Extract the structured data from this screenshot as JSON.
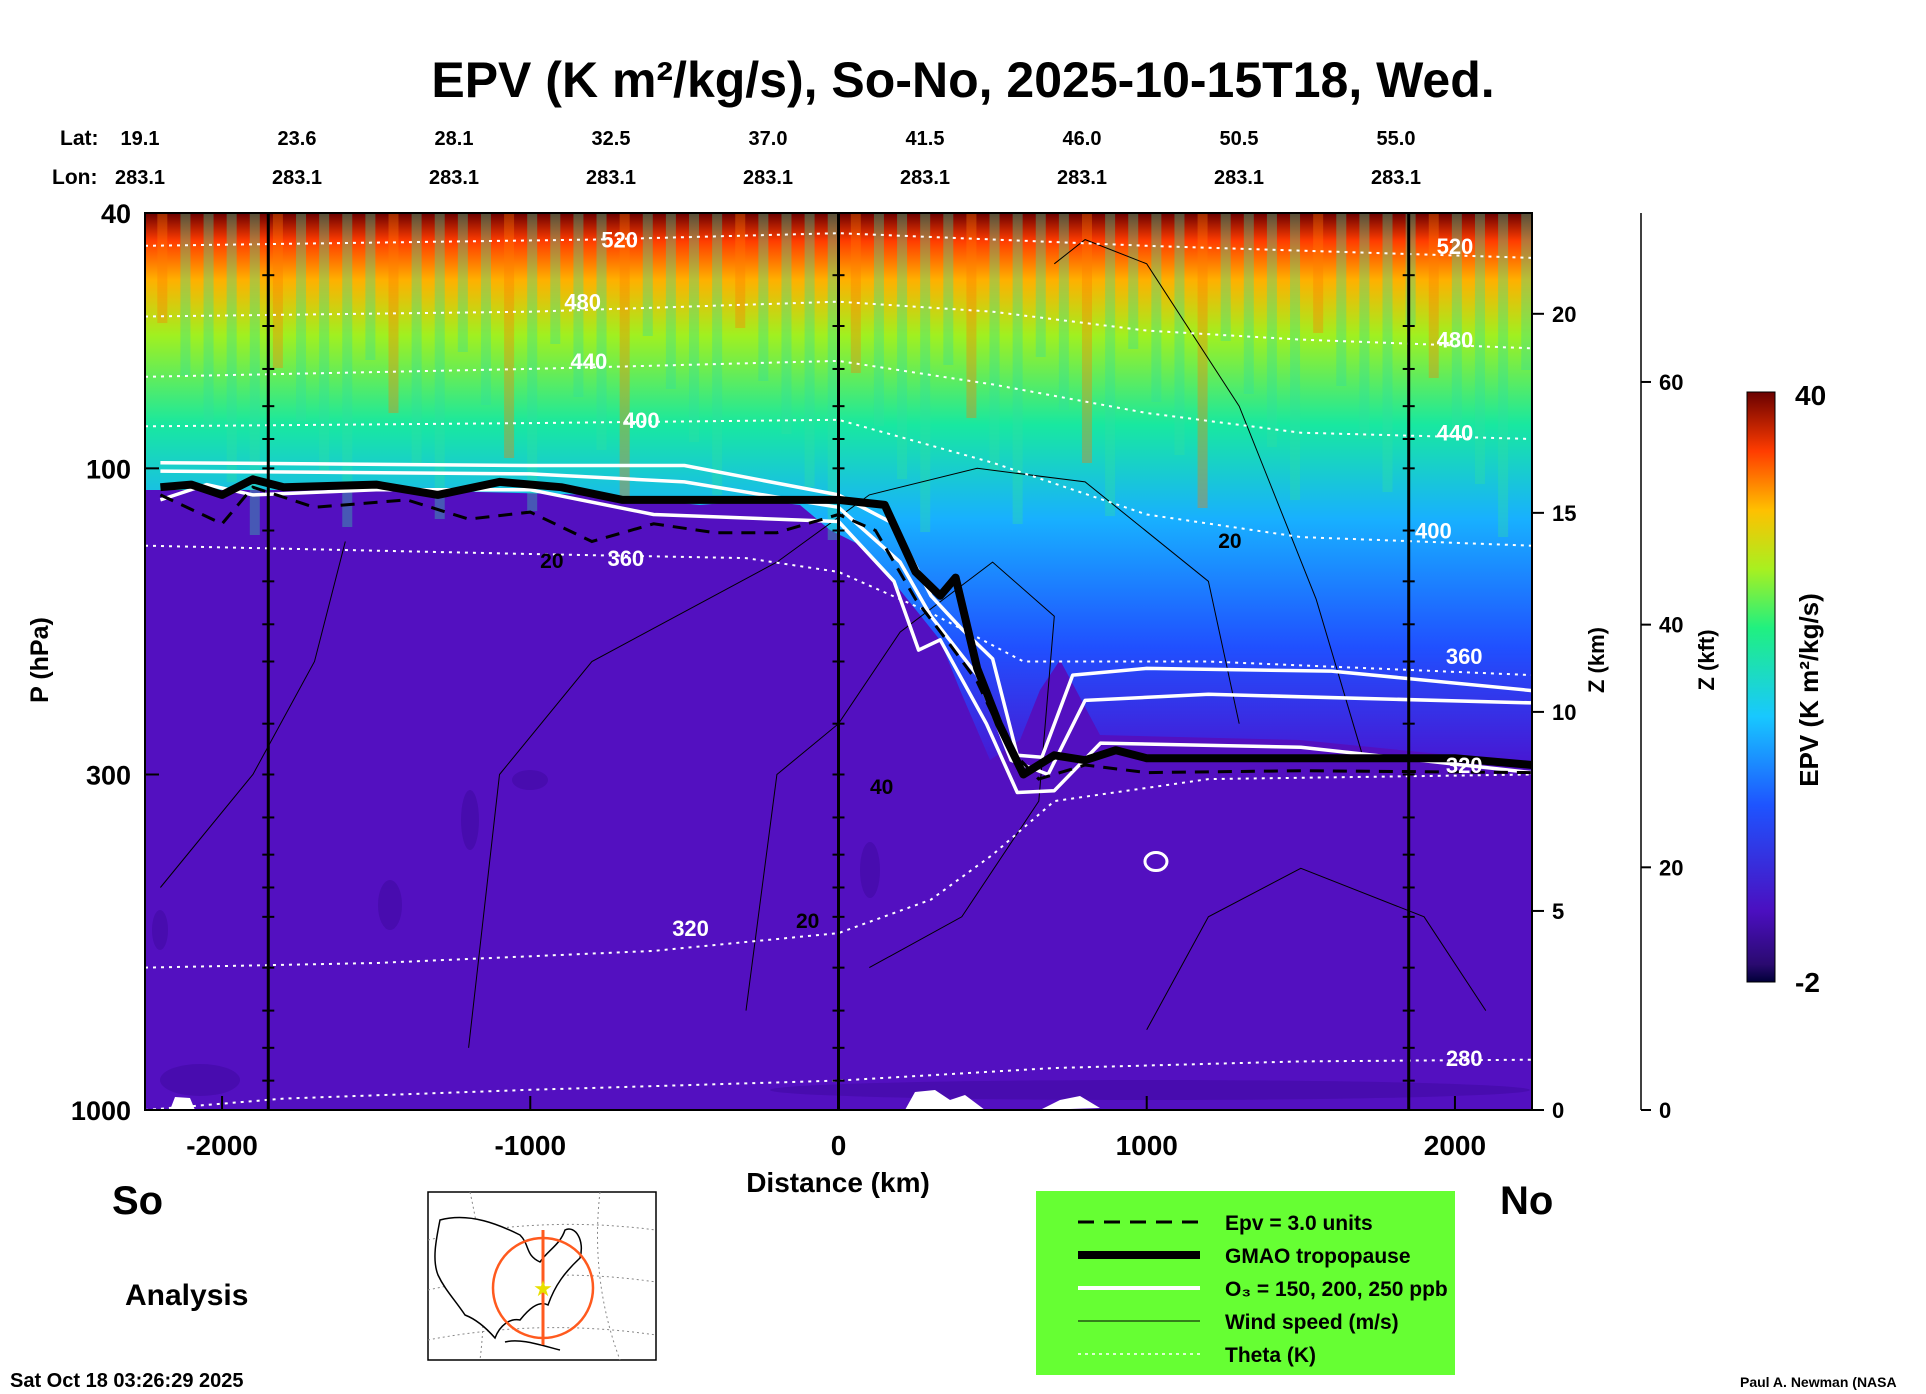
{
  "chart_data": {
    "type": "heatmap",
    "title": "EPV (K m²/kg/s), So-No, 2025-10-15T18, Wed.",
    "lat_label": "Lat:",
    "lon_label": "Lon:",
    "header_columns": [
      {
        "lat": "19.1",
        "lon": "283.1"
      },
      {
        "lat": "23.6",
        "lon": "283.1"
      },
      {
        "lat": "28.1",
        "lon": "283.1"
      },
      {
        "lat": "32.5",
        "lon": "283.1"
      },
      {
        "lat": "37.0",
        "lon": "283.1"
      },
      {
        "lat": "41.5",
        "lon": "283.1"
      },
      {
        "lat": "46.0",
        "lon": "283.1"
      },
      {
        "lat": "50.5",
        "lon": "283.1"
      },
      {
        "lat": "55.0",
        "lon": "283.1"
      }
    ],
    "xlabel": "Distance (km)",
    "xlim": [
      -2250,
      2250
    ],
    "xticks": [
      -2000,
      -1000,
      0,
      1000,
      2000
    ],
    "vertical_lines_km": [
      -1850,
      0,
      1850
    ],
    "ylabel": "P (hPa)",
    "y_log_scale": true,
    "ylim": [
      1000,
      40
    ],
    "yticks": [
      40,
      100,
      300,
      1000
    ],
    "z_km_label": "Z (km)",
    "z_km_ticks": [
      0,
      5,
      10,
      15,
      20
    ],
    "z_kft_label": "Z (kft)",
    "z_kft_ticks": [
      0,
      20,
      40,
      60
    ],
    "left_end_label": "So",
    "right_end_label": "No",
    "colorbar": {
      "label": "EPV (K m²/kg/s)",
      "min": -2,
      "max": 40
    },
    "theta_contours": [
      {
        "value": 280,
        "label": "280",
        "points": [
          [
            -2250,
            1000
          ],
          [
            -1800,
            960
          ],
          [
            -1000,
            930
          ],
          [
            0,
            900
          ],
          [
            700,
            860
          ],
          [
            1500,
            840
          ],
          [
            2250,
            835
          ]
        ]
      },
      {
        "value": 320,
        "label": "320",
        "points": [
          [
            -2250,
            600
          ],
          [
            -1500,
            590
          ],
          [
            -600,
            565
          ],
          [
            0,
            530
          ],
          [
            300,
            470
          ],
          [
            500,
            400
          ],
          [
            700,
            330
          ],
          [
            1200,
            305
          ],
          [
            2250,
            300
          ]
        ]
      },
      {
        "value": 360,
        "label": "360",
        "points": [
          [
            -2250,
            132
          ],
          [
            -1000,
            136
          ],
          [
            -300,
            138
          ],
          [
            0,
            145
          ],
          [
            300,
            168
          ],
          [
            600,
            200
          ],
          [
            1200,
            200
          ],
          [
            2250,
            210
          ]
        ]
      },
      {
        "value": 400,
        "label": "400",
        "points": [
          [
            -2250,
            86
          ],
          [
            -1000,
            85
          ],
          [
            0,
            84
          ],
          [
            500,
            98
          ],
          [
            1000,
            118
          ],
          [
            1500,
            128
          ],
          [
            2250,
            132
          ]
        ]
      },
      {
        "value": 440,
        "label": "440",
        "points": [
          [
            -2250,
            72
          ],
          [
            -1000,
            70
          ],
          [
            0,
            68
          ],
          [
            500,
            74
          ],
          [
            1000,
            82
          ],
          [
            1500,
            88
          ],
          [
            2250,
            90
          ]
        ]
      },
      {
        "value": 480,
        "label": "480",
        "points": [
          [
            -2250,
            58
          ],
          [
            -1000,
            57
          ],
          [
            0,
            55
          ],
          [
            500,
            57
          ],
          [
            1000,
            61
          ],
          [
            1500,
            63
          ],
          [
            2250,
            65
          ]
        ]
      },
      {
        "value": 520,
        "label": "520",
        "points": [
          [
            -2250,
            45
          ],
          [
            -800,
            44
          ],
          [
            0,
            43
          ],
          [
            1000,
            45
          ],
          [
            2250,
            47
          ]
        ]
      }
    ],
    "tropopause_gmao": [
      [
        -2200,
        107
      ],
      [
        -2100,
        106
      ],
      [
        -2000,
        110
      ],
      [
        -1900,
        104
      ],
      [
        -1800,
        107
      ],
      [
        -1500,
        106
      ],
      [
        -1300,
        110
      ],
      [
        -1100,
        105
      ],
      [
        -900,
        107
      ],
      [
        -700,
        112
      ],
      [
        -300,
        112
      ],
      [
        0,
        112
      ],
      [
        150,
        114
      ],
      [
        250,
        145
      ],
      [
        330,
        158
      ],
      [
        380,
        148
      ],
      [
        450,
        205
      ],
      [
        520,
        250
      ],
      [
        600,
        300
      ],
      [
        700,
        280
      ],
      [
        800,
        285
      ],
      [
        900,
        275
      ],
      [
        1000,
        283
      ],
      [
        1500,
        283
      ],
      [
        2000,
        283
      ],
      [
        2250,
        290
      ]
    ],
    "epv_3pvu": [
      [
        -2200,
        110
      ],
      [
        -2000,
        122
      ],
      [
        -1900,
        107
      ],
      [
        -1700,
        115
      ],
      [
        -1400,
        112
      ],
      [
        -1200,
        120
      ],
      [
        -1000,
        117
      ],
      [
        -800,
        130
      ],
      [
        -600,
        122
      ],
      [
        -400,
        126
      ],
      [
        -200,
        126
      ],
      [
        0,
        118
      ],
      [
        120,
        125
      ],
      [
        250,
        160
      ],
      [
        350,
        185
      ],
      [
        450,
        215
      ],
      [
        550,
        272
      ],
      [
        650,
        305
      ],
      [
        800,
        290
      ],
      [
        1000,
        298
      ],
      [
        1500,
        296
      ],
      [
        2250,
        298
      ]
    ],
    "ozone_contours": [
      {
        "ppb": 150,
        "points": [
          [
            -2200,
            98
          ],
          [
            -1000,
            99
          ],
          [
            -500,
            99
          ],
          [
            0,
            110
          ],
          [
            180,
            122
          ],
          [
            300,
            158
          ],
          [
            400,
            178
          ],
          [
            500,
            198
          ],
          [
            580,
            280
          ],
          [
            660,
            282
          ],
          [
            760,
            210
          ],
          [
            1000,
            205
          ],
          [
            1600,
            207
          ],
          [
            2250,
            222
          ]
        ]
      },
      {
        "ppb": 200,
        "points": [
          [
            -2200,
            101
          ],
          [
            -1000,
            102
          ],
          [
            -500,
            105
          ],
          [
            0,
            115
          ],
          [
            200,
            140
          ],
          [
            300,
            170
          ],
          [
            450,
            210
          ],
          [
            560,
            285
          ],
          [
            680,
            300
          ],
          [
            800,
            230
          ],
          [
            1200,
            225
          ],
          [
            2250,
            232
          ]
        ]
      },
      {
        "ppb": 250,
        "points": [
          [
            -2200,
            112
          ],
          [
            -2050,
            106
          ],
          [
            -1900,
            110
          ],
          [
            -1500,
            108
          ],
          [
            -1000,
            108
          ],
          [
            -600,
            118
          ],
          [
            0,
            121
          ],
          [
            180,
            150
          ],
          [
            260,
            192
          ],
          [
            330,
            185
          ],
          [
            480,
            250
          ],
          [
            580,
            320
          ],
          [
            700,
            318
          ],
          [
            850,
            268
          ],
          [
            1500,
            272
          ],
          [
            2250,
            298
          ]
        ]
      }
    ],
    "wind_contours": [
      {
        "value": 20,
        "label": "20"
      },
      {
        "value": 40,
        "label": "40"
      }
    ],
    "wind_label_instances": [
      {
        "text": "20",
        "x": -930,
        "p": 143
      },
      {
        "text": "40",
        "x": 140,
        "p": 322
      },
      {
        "text": "20",
        "x": -100,
        "p": 520
      },
      {
        "text": "20",
        "x": 1270,
        "p": 133
      }
    ],
    "legend": {
      "background": "#66ff33",
      "items": [
        {
          "style": "dashed",
          "label": "Epv = 3.0 units"
        },
        {
          "style": "thick",
          "label": "GMAO tropopause"
        },
        {
          "style": "white",
          "label": "O₃ = 150, 200, 250 ppb"
        },
        {
          "style": "thin",
          "label": "Wind speed (m/s)"
        },
        {
          "style": "dotted",
          "label": "Theta (K)"
        }
      ]
    },
    "analysis_label": "Analysis",
    "timestamp": "Sat Oct 18 03:26:29 2025",
    "credit": "Paul A. Newman (NASA"
  },
  "colors": {
    "background_purple": "#5310c0",
    "theta": "#ffffff",
    "tropopause": "#000000",
    "legend_bg": "#66ff33",
    "map_circle": "#ff5a1e",
    "map_star": "#e8e000"
  }
}
